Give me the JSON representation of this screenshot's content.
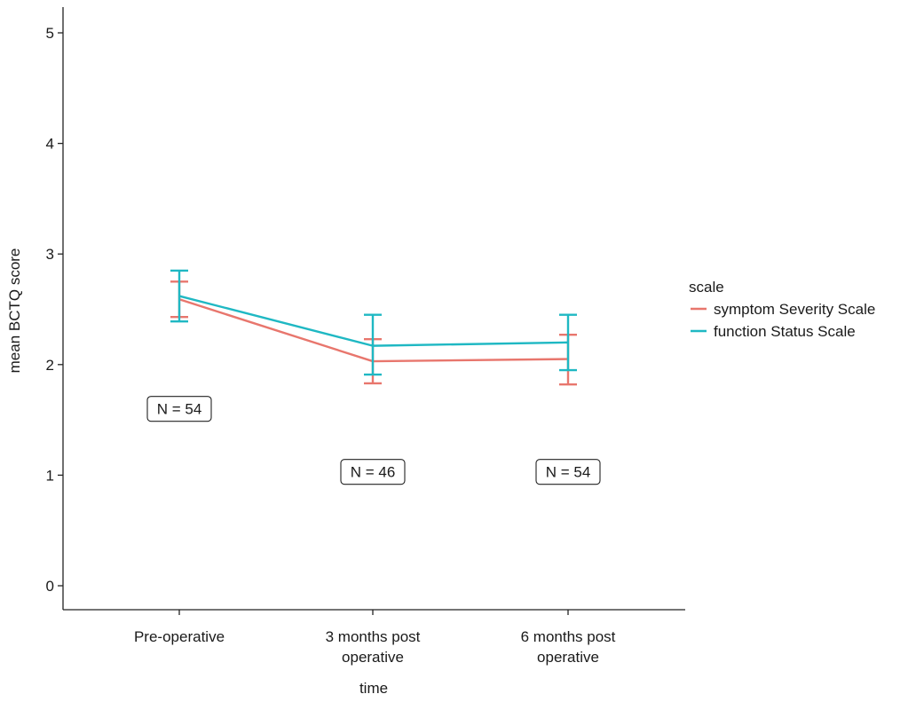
{
  "chart_data": {
    "type": "line",
    "xlabel": "time",
    "ylabel": "mean BCTQ score",
    "ylim": [
      -0.2,
      5.25
    ],
    "yticks": [
      "0",
      "1",
      "2",
      "3",
      "4",
      "5"
    ],
    "categories": [
      [
        "Pre-operative"
      ],
      [
        "3 months post",
        "operative"
      ],
      [
        "6 months post",
        "operative"
      ]
    ],
    "series": [
      {
        "name": "symptom Severity Scale",
        "color": "#e8766d",
        "values": [
          2.59,
          2.03,
          2.05
        ],
        "lower": [
          2.43,
          1.83,
          1.82
        ],
        "upper": [
          2.75,
          2.23,
          2.27
        ]
      },
      {
        "name": "function Status Scale",
        "color": "#1fb8c3",
        "values": [
          2.62,
          2.17,
          2.2
        ],
        "lower": [
          2.39,
          1.91,
          1.95
        ],
        "upper": [
          2.85,
          2.45,
          2.45
        ]
      }
    ],
    "annotations": [
      {
        "text": "N = 54",
        "category": 0,
        "y": 1.6
      },
      {
        "text": "N = 46",
        "category": 1,
        "y": 1.03
      },
      {
        "text": "N = 54",
        "category": 2,
        "y": 1.03
      }
    ],
    "legend": {
      "title": "scale",
      "position": "right"
    },
    "grid": false
  }
}
